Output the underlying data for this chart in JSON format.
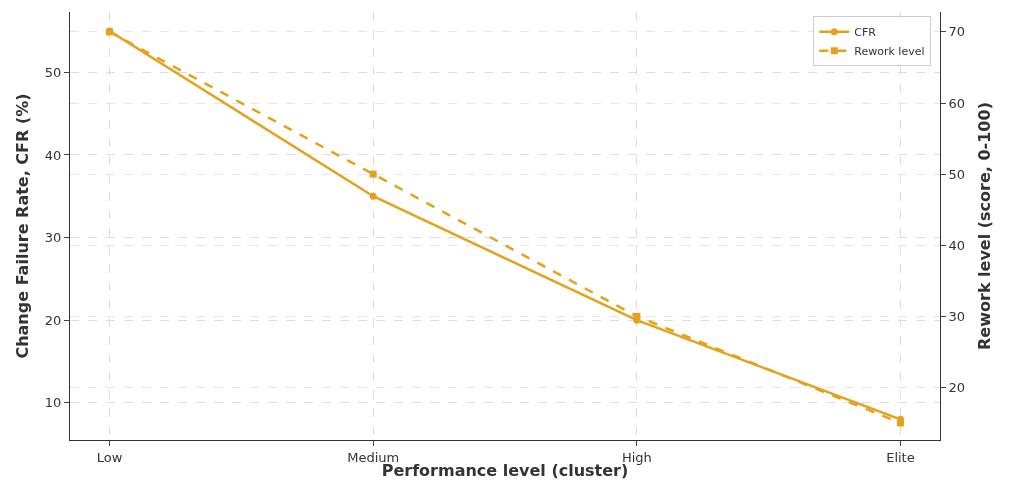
{
  "chart_data": {
    "type": "line",
    "xlabel": "Performance level (cluster)",
    "ylabel": "Change Failure Rate, CFR (%)",
    "y2label": "Rework level (score, 0-100)",
    "categories": [
      "Low",
      "Medium",
      "High",
      "Elite"
    ],
    "series": [
      {
        "name": "CFR",
        "color": "#e3a21a",
        "values": [
          55,
          35,
          20,
          8
        ],
        "marker": "circle",
        "line_style": "solid"
      },
      {
        "name": "Rework level",
        "color": "#e3a21a",
        "values": [
          70,
          50,
          30,
          15
        ],
        "marker": "square",
        "line_style": "dashed",
        "axis": "y2"
      }
    ],
    "ylim": [
      5.5,
      57.3
    ],
    "yticks": [
      10,
      20,
      30,
      40,
      50
    ],
    "y2lim": [
      12.6,
      72.8
    ],
    "y2ticks": [
      20,
      30,
      40,
      50,
      60,
      70
    ],
    "grid": true,
    "legend": "top right"
  }
}
